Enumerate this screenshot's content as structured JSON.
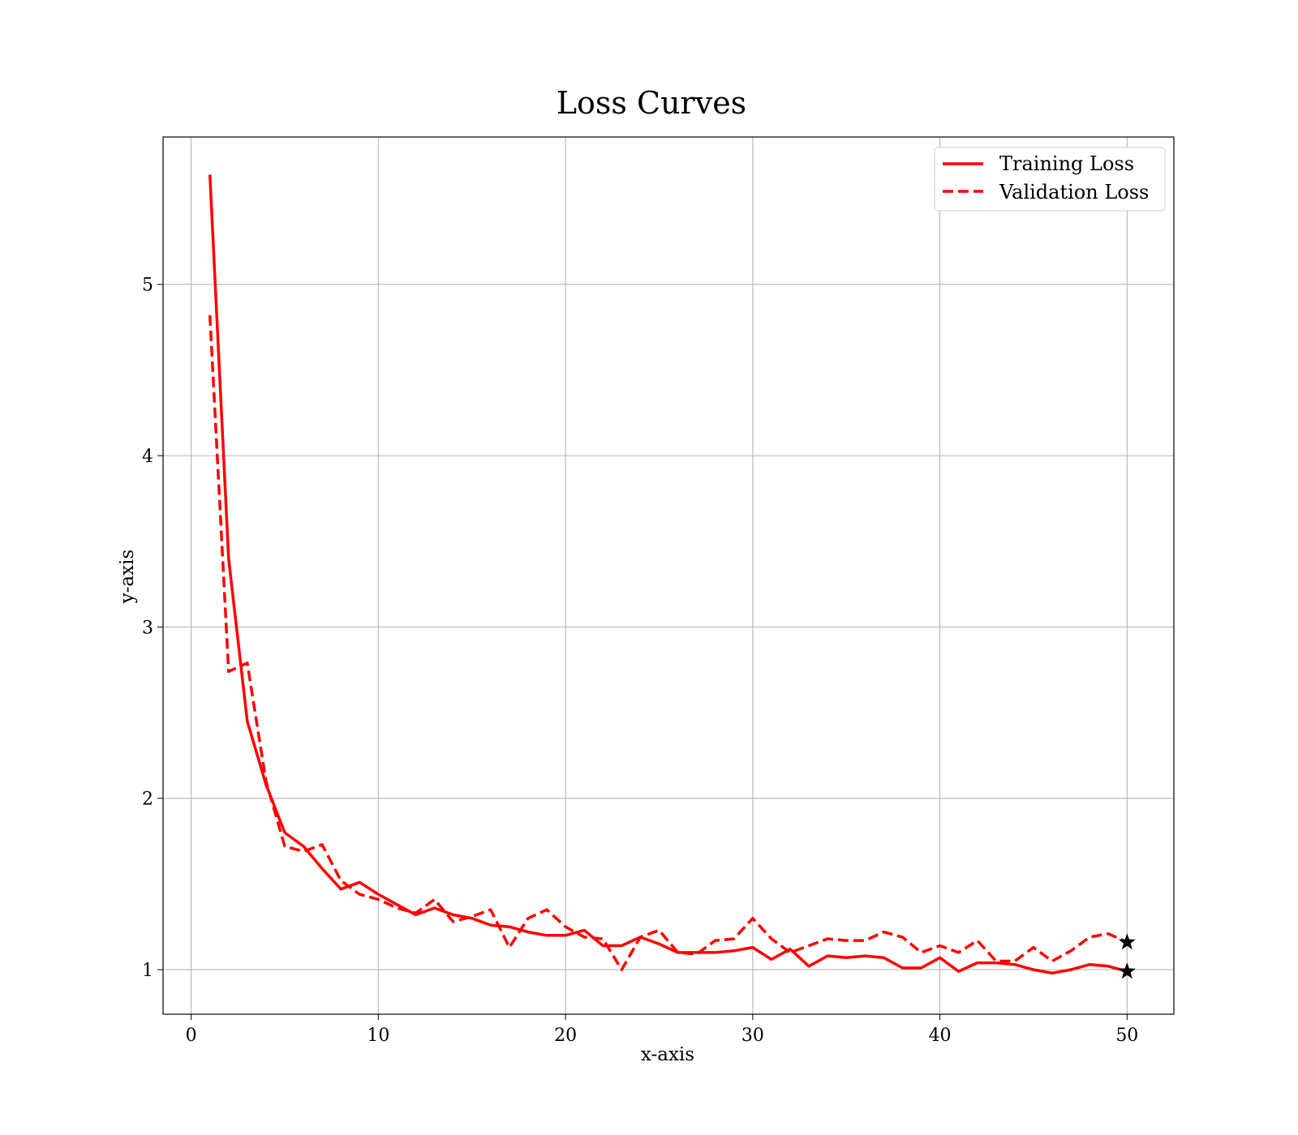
{
  "chart_data": {
    "type": "line",
    "title": "Loss Curves",
    "xlabel": "x-axis",
    "ylabel": "y-axis",
    "xlim": [
      -1.5,
      52.5
    ],
    "ylim": [
      0.74,
      5.86
    ],
    "xticks": [
      0,
      10,
      20,
      30,
      40,
      50
    ],
    "yticks": [
      1,
      2,
      3,
      4,
      5
    ],
    "grid": true,
    "legend_position": "top-right",
    "x": [
      1,
      2,
      3,
      4,
      5,
      6,
      7,
      8,
      9,
      10,
      11,
      12,
      13,
      14,
      15,
      16,
      17,
      18,
      19,
      20,
      21,
      22,
      23,
      24,
      25,
      26,
      27,
      28,
      29,
      30,
      31,
      32,
      33,
      34,
      35,
      36,
      37,
      38,
      39,
      40,
      41,
      42,
      43,
      44,
      45,
      46,
      47,
      48,
      49,
      50
    ],
    "series": [
      {
        "name": "Training Loss",
        "color": "#ff0000",
        "style": "solid",
        "values": [
          5.64,
          3.4,
          2.45,
          2.08,
          1.8,
          1.72,
          1.59,
          1.47,
          1.51,
          1.44,
          1.38,
          1.32,
          1.36,
          1.32,
          1.3,
          1.26,
          1.25,
          1.22,
          1.2,
          1.2,
          1.23,
          1.14,
          1.14,
          1.19,
          1.15,
          1.1,
          1.1,
          1.1,
          1.11,
          1.13,
          1.06,
          1.12,
          1.02,
          1.08,
          1.07,
          1.08,
          1.07,
          1.01,
          1.01,
          1.07,
          0.99,
          1.04,
          1.04,
          1.03,
          1.0,
          0.98,
          1.0,
          1.03,
          1.02,
          0.99
        ]
      },
      {
        "name": "Validation Loss",
        "color": "#ff0000",
        "style": "dashed",
        "values": [
          4.82,
          2.74,
          2.79,
          2.1,
          1.72,
          1.69,
          1.73,
          1.52,
          1.44,
          1.41,
          1.36,
          1.33,
          1.41,
          1.28,
          1.31,
          1.35,
          1.13,
          1.3,
          1.35,
          1.25,
          1.19,
          1.18,
          1.0,
          1.19,
          1.23,
          1.1,
          1.09,
          1.17,
          1.18,
          1.3,
          1.18,
          1.1,
          1.14,
          1.18,
          1.17,
          1.17,
          1.22,
          1.19,
          1.1,
          1.14,
          1.1,
          1.17,
          1.05,
          1.05,
          1.13,
          1.05,
          1.11,
          1.19,
          1.21,
          1.16
        ]
      }
    ],
    "markers": [
      {
        "x": 50,
        "y": 0.99,
        "symbol": "star",
        "color": "#000000"
      },
      {
        "x": 50,
        "y": 1.16,
        "symbol": "star",
        "color": "#000000"
      }
    ]
  }
}
